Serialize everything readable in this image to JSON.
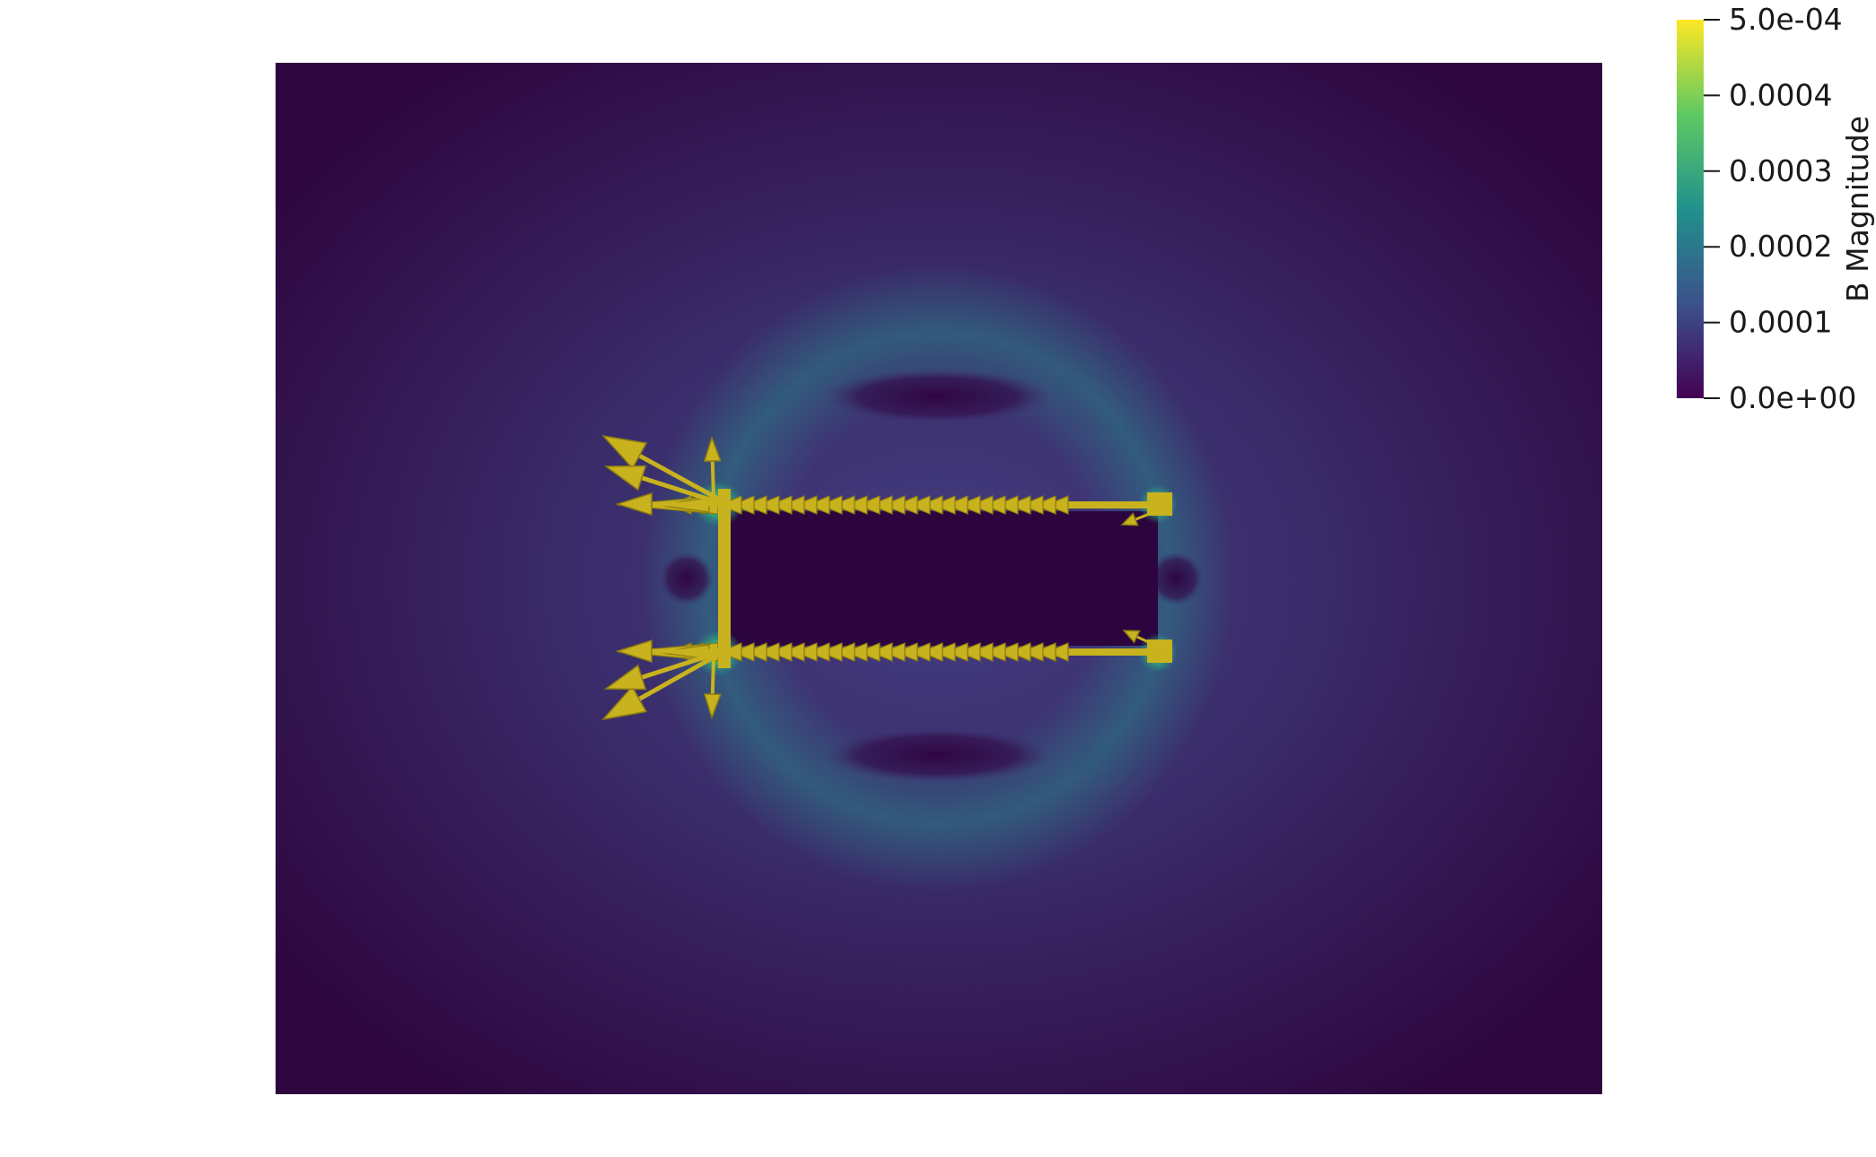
{
  "scalar_bar": {
    "title": "B Magnitude",
    "colormap": [
      "#440154",
      "#3b528b",
      "#21918c",
      "#5ec962",
      "#fde725"
    ],
    "ticks": [
      {
        "label": "5.0e-04",
        "value": 0.0005
      },
      {
        "label": "0.0004",
        "value": 0.0004
      },
      {
        "label": "0.0003",
        "value": 0.0003
      },
      {
        "label": "0.0002",
        "value": 0.0002
      },
      {
        "label": "0.0001",
        "value": 0.0001
      },
      {
        "label": "0.0e+00",
        "value": 0.0
      }
    ]
  },
  "scene": {
    "background": "#ffffff",
    "field_colors": {
      "low": "#30083f",
      "mid": "#3d3170",
      "glow": "#2f8a86",
      "hot": "#5ec962",
      "void": "#2c043e"
    },
    "glyph_color": "#c8b21e",
    "glyph_shade": "#8c7b12"
  }
}
